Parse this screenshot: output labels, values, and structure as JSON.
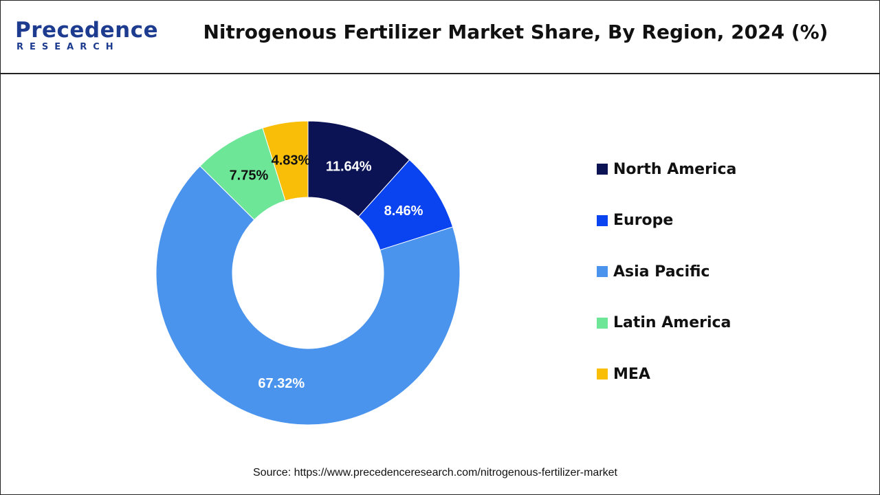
{
  "brand": {
    "name": "Precedence",
    "sub": "RESEARCH",
    "color": "#1d3c8f"
  },
  "title": "Nitrogenous Fertilizer Market Share, By Region, 2024 (%)",
  "source": "Source: https://www.precedenceresearch.com/nitrogenous-fertilizer-market",
  "chart_data": {
    "type": "pie",
    "donut": true,
    "legend_position": "right",
    "categories": [
      "North America",
      "Europe",
      "Asia Pacific",
      "Latin America",
      "MEA"
    ],
    "values": [
      11.64,
      8.46,
      67.32,
      7.75,
      4.83
    ],
    "labels": [
      "11.64%",
      "8.46%",
      "67.32%",
      "7.75%",
      "4.83%"
    ],
    "colors": [
      "#0b1354",
      "#0a43f0",
      "#4b94ee",
      "#6de698",
      "#f8be08"
    ],
    "label_colors": [
      "#ffffff",
      "#ffffff",
      "#ffffff",
      "#111111",
      "#111111"
    ]
  }
}
